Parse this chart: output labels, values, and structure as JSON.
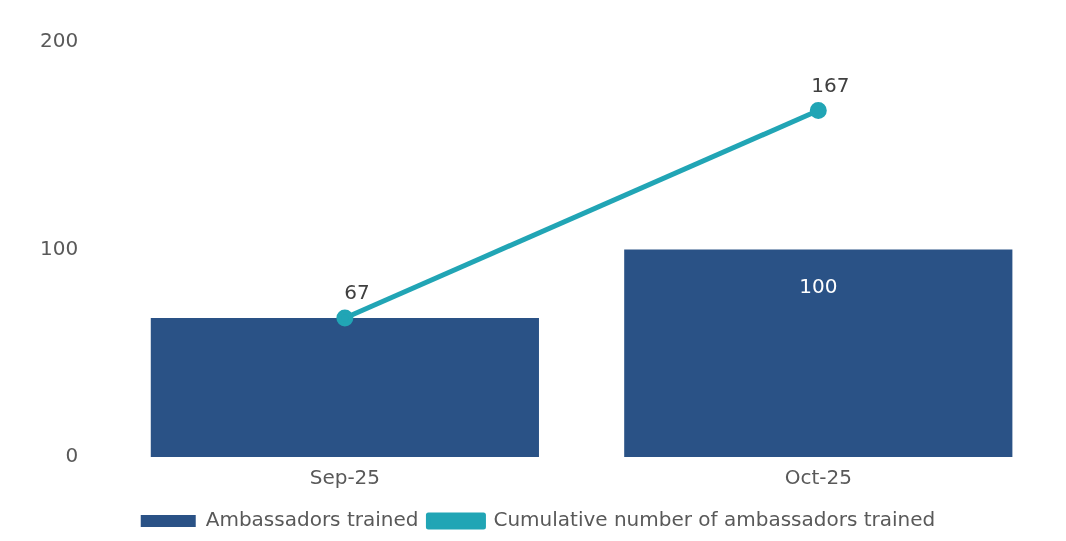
{
  "chart_data": {
    "type": "bar",
    "categories": [
      "Sep-25",
      "Oct-25"
    ],
    "series": [
      {
        "name": "Ambassadors trained",
        "color": "#2a5286",
        "values": [
          67,
          100
        ],
        "value_labels": [
          null,
          "100"
        ]
      },
      {
        "name": "Cumulative number of ambassadors trained",
        "type": "line",
        "color": "#21a5b5",
        "values": [
          67,
          167
        ],
        "value_labels": [
          "67",
          "167"
        ],
        "marker": "circle"
      }
    ],
    "ylim": [
      0,
      200
    ],
    "yticks": [
      0,
      100,
      200
    ],
    "grid": false,
    "legend": "bottom"
  }
}
